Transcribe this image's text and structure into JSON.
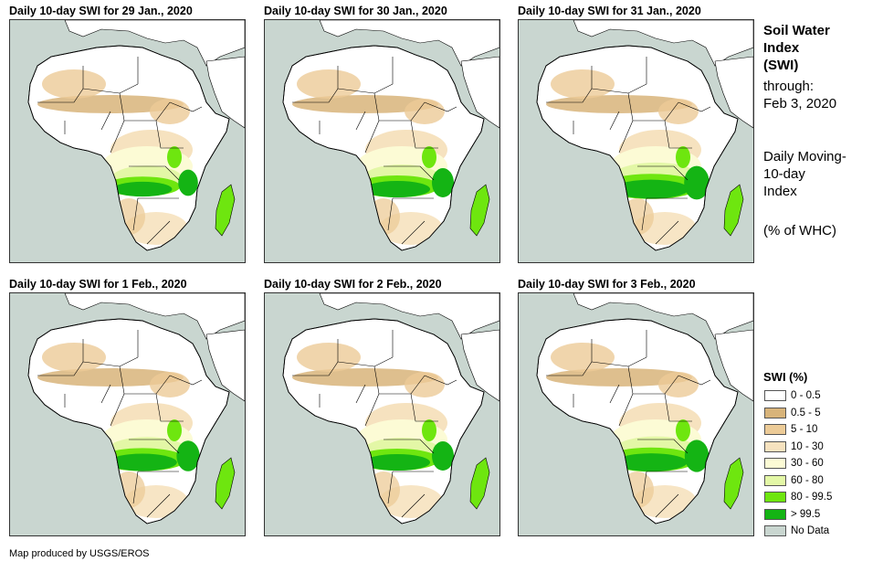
{
  "panels": [
    {
      "title": "Daily 10-day SWI for 29 Jan., 2020"
    },
    {
      "title": "Daily 10-day SWI for 30 Jan., 2020"
    },
    {
      "title": "Daily 10-day SWI for 31 Jan., 2020"
    },
    {
      "title": "Daily 10-day SWI for 1 Feb., 2020"
    },
    {
      "title": "Daily 10-day SWI for 2 Feb., 2020"
    },
    {
      "title": "Daily 10-day SWI for 3 Feb., 2020"
    }
  ],
  "side": {
    "heading_line1": "Soil Water",
    "heading_line2": "Index",
    "heading_line3": "(SWI)",
    "through_label": "through:",
    "through_date": "Feb 3, 2020",
    "desc_line1": "Daily Moving-",
    "desc_line2": "10-day",
    "desc_line3": "Index",
    "unit": "(% of WHC)"
  },
  "legend": {
    "title": "SWI (%)",
    "items": [
      {
        "label": "0 - 0.5",
        "color": "#ffffff"
      },
      {
        "label": "0.5 - 5",
        "color": "#d8b47a"
      },
      {
        "label": "5 - 10",
        "color": "#eccb97"
      },
      {
        "label": "10 - 30",
        "color": "#f6e2bf"
      },
      {
        "label": "30 - 60",
        "color": "#fcfbd5"
      },
      {
        "label": "60 - 80",
        "color": "#e3f7a6"
      },
      {
        "label": "80 - 99.5",
        "color": "#6ee60f"
      },
      {
        "label": "> 99.5",
        "color": "#14b414"
      },
      {
        "label": "No Data",
        "color": "#c9d6d0"
      }
    ]
  },
  "credit": "Map produced by USGS/EROS",
  "colors": {
    "sea": "#c9d6d0",
    "land": "#ffffff",
    "border": "#000000"
  }
}
